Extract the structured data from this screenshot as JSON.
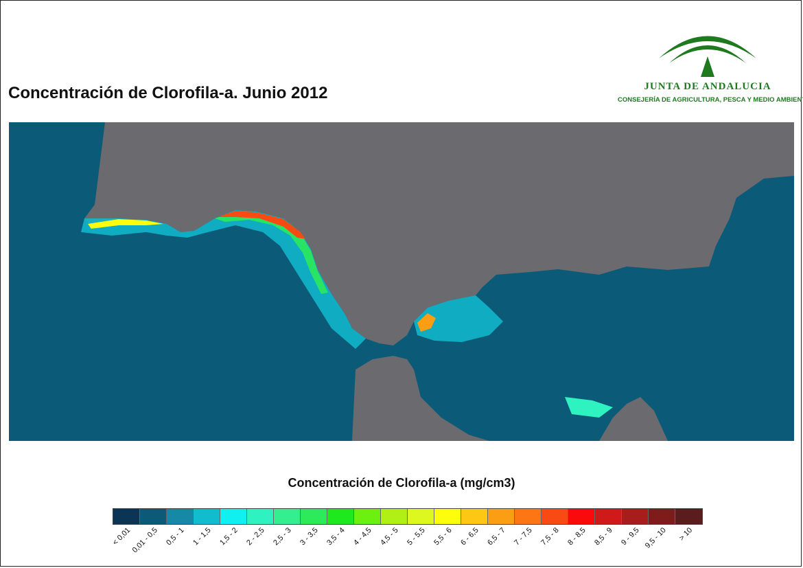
{
  "title": "Concentración de Clorofila-a. Junio 2012",
  "logo": {
    "name": "JUNTA DE ANDALUCIA",
    "subtitle": "CONSEJERÍA DE AGRICULTURA, PESCA Y MEDIO AMBIENTE",
    "color": "#1f7a1f"
  },
  "map": {
    "land_color": "#6b6b6f",
    "sea_color": "#0b5a78"
  },
  "legend": {
    "title": "Concentración de Clorofila-a (mg/cm3)",
    "classes": [
      {
        "label": "< 0,01",
        "color": "#0c3454"
      },
      {
        "label": "0,01 - 0,5",
        "color": "#0b5a78"
      },
      {
        "label": "0,5 - 1",
        "color": "#1589a6"
      },
      {
        "label": "1 - 1,5",
        "color": "#12bccf"
      },
      {
        "label": "1,5 - 2",
        "color": "#10f0f0"
      },
      {
        "label": "2 - 2,5",
        "color": "#2ef2c0"
      },
      {
        "label": "2,5 - 3",
        "color": "#34ee90"
      },
      {
        "label": "3 - 3,5",
        "color": "#2cea5a"
      },
      {
        "label": "3,5 - 4",
        "color": "#1ee81e"
      },
      {
        "label": "4 - 4,5",
        "color": "#6cf010"
      },
      {
        "label": "4,5 - 5",
        "color": "#b0f014"
      },
      {
        "label": "5 - 5,5",
        "color": "#dcf81e"
      },
      {
        "label": "5,5 - 6",
        "color": "#fdfd0c"
      },
      {
        "label": "6 - 6,5",
        "color": "#fcc814"
      },
      {
        "label": "6,5 - 7",
        "color": "#fc9e14"
      },
      {
        "label": "7 - 7,5",
        "color": "#fc7614"
      },
      {
        "label": "7,5 - 8",
        "color": "#fa4a14"
      },
      {
        "label": "8 - 8,5",
        "color": "#fa0a0a"
      },
      {
        "label": "8,5 - 9",
        "color": "#d01a1a"
      },
      {
        "label": "9 - 9,5",
        "color": "#a81c1c"
      },
      {
        "label": "9,5 - 10",
        "color": "#7e1c1c"
      },
      {
        "label": "> 10",
        "color": "#5a1c1c"
      }
    ]
  }
}
